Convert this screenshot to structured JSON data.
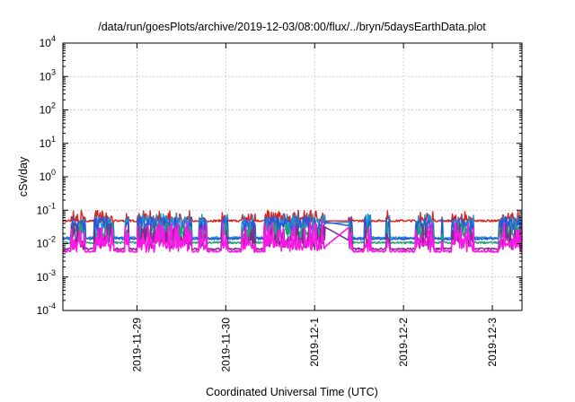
{
  "chart_data": {
    "type": "line",
    "title": "/data/run/goesPlots/archive/2019-12-03/08:00/flux/../bryn/5daysEarthData.plot",
    "xlabel": "Coordinated Universal Time (UTC)",
    "ylabel": "cSv/day",
    "yscale": "log",
    "ylim": [
      0.0001,
      10000
    ],
    "y_ticks": [
      {
        "value": 0.0001,
        "base": "10",
        "exp": "-4"
      },
      {
        "value": 0.001,
        "base": "10",
        "exp": "-3"
      },
      {
        "value": 0.01,
        "base": "10",
        "exp": "-2"
      },
      {
        "value": 0.1,
        "base": "10",
        "exp": "-1"
      },
      {
        "value": 1,
        "base": "10",
        "exp": "0"
      },
      {
        "value": 10,
        "base": "10",
        "exp": "1"
      },
      {
        "value": 100,
        "base": "10",
        "exp": "2"
      },
      {
        "value": 1000,
        "base": "10",
        "exp": "3"
      },
      {
        "value": 10000,
        "base": "10",
        "exp": "4"
      }
    ],
    "xlim": [
      "2019-11-28T04:00",
      "2019-12-03T08:00"
    ],
    "x_ticks": [
      "2019-11-29",
      "2019-11-30",
      "2019-12-1",
      "2019-12-2",
      "2019-12-3"
    ],
    "x_tick_values": [
      "2019-11-29T00:00",
      "2019-11-30T00:00",
      "2019-12-01T00:00",
      "2019-12-02T00:00",
      "2019-12-03T00:00"
    ],
    "grid": true,
    "data_gap": [
      "2019-12-01T03:00",
      "2019-12-01T09:00"
    ],
    "series": [
      {
        "color": "#e0201a",
        "baseline": 0.05,
        "peak": 0.1,
        "dip": 0.045,
        "values_range": [
          0.045,
          0.1
        ]
      },
      {
        "color": "#1a8fd9",
        "baseline": 0.04,
        "peak": 0.08,
        "dip": 0.014,
        "values_range": [
          0.014,
          0.08
        ]
      },
      {
        "color": "#2a55d6",
        "baseline": 0.035,
        "peak": 0.065,
        "dip": 0.013,
        "values_range": [
          0.013,
          0.065
        ]
      },
      {
        "color": "#1fa37a",
        "baseline": 0.02,
        "peak": 0.045,
        "dip": 0.01,
        "values_range": [
          0.01,
          0.045
        ]
      },
      {
        "color": "#7f2a8c",
        "baseline": 0.013,
        "peak": 0.04,
        "dip": 0.0065,
        "values_range": [
          0.0065,
          0.04
        ]
      },
      {
        "color": "#ff16e8",
        "baseline": 0.01,
        "peak": 0.045,
        "dip": 0.0055,
        "values_range": [
          0.0055,
          0.045
        ]
      }
    ]
  }
}
